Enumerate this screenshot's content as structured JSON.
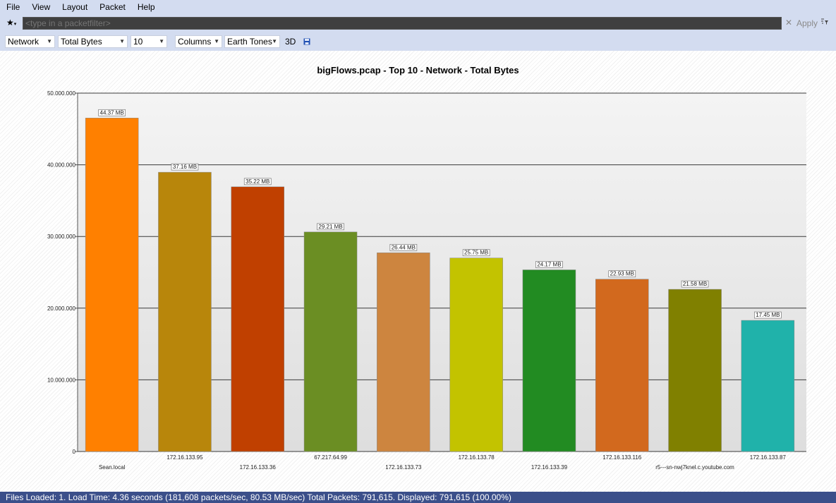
{
  "menu": [
    "File",
    "View",
    "Layout",
    "Packet",
    "Help"
  ],
  "filter": {
    "star_icon": "★",
    "placeholder": "<type in a packetfilter>",
    "clear_icon": "✕",
    "apply_label": "Apply",
    "options_icon": "filter-options-icon"
  },
  "toolbar": {
    "dimension": "Network",
    "metric": "Total Bytes",
    "top_n": "10",
    "chart_kind": "Columns",
    "palette": "Earth Tones",
    "three_d_label": "3D",
    "save_icon": "save-icon"
  },
  "chart_title": "bigFlows.pcap - Top 10 - Network - Total Bytes",
  "chart_data": {
    "type": "bar",
    "title": "bigFlows.pcap - Top 10 - Network - Total Bytes",
    "ylim": [
      0,
      50000000
    ],
    "yticks": [
      "0",
      "10.000.000",
      "20.000.000",
      "30.000.000",
      "40.000.000",
      "50.000.000"
    ],
    "grid": true,
    "categories": [
      "Sean.local",
      "172.16.133.95",
      "172.16.133.36",
      "67.217.64.99",
      "172.16.133.73",
      "172.16.133.78",
      "172.16.133.39",
      "172.16.133.116",
      "r5---sn-nwj7knel.c.youtube.com",
      "172.16.133.87"
    ],
    "values": [
      46525000,
      38965000,
      36930000,
      30630000,
      27725000,
      27000000,
      25345000,
      24045000,
      22630000,
      18300000
    ],
    "data_labels": [
      "44.37 MB",
      "37.16 MB",
      "35.22 MB",
      "29.21 MB",
      "26.44 MB",
      "25.75 MB",
      "24.17 MB",
      "22.93 MB",
      "21.58 MB",
      "17.45 MB"
    ],
    "colors": [
      "#ff8000",
      "#b8860b",
      "#c04000",
      "#6b8e23",
      "#cd853f",
      "#c3c300",
      "#228b22",
      "#d2691e",
      "#808000",
      "#20b2aa"
    ]
  },
  "status": "Files Loaded: 1. Load Time: 4.36 seconds (181,608 packets/sec, 80.53 MB/sec)    Total Packets: 791,615. Displayed: 791,615 (100.00%)"
}
